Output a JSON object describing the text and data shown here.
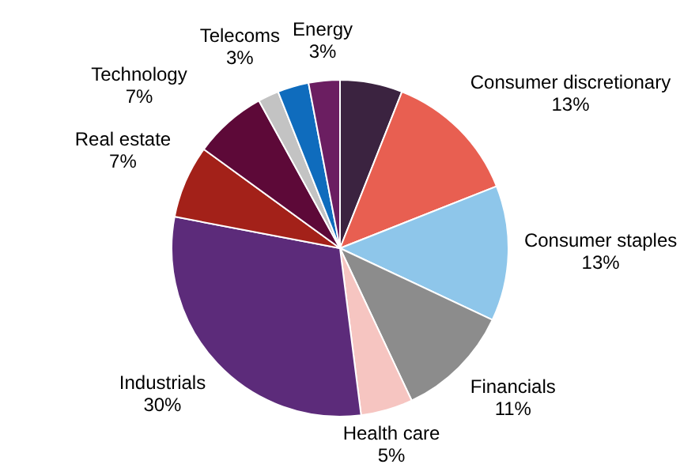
{
  "chart_data": {
    "type": "pie",
    "categories": [
      null,
      "Consumer discretionary",
      "Consumer staples",
      "Financials",
      "Health care",
      "Industrials",
      "Real estate",
      "Technology",
      null,
      "Telecoms",
      "Energy"
    ],
    "values": [
      6,
      13,
      13,
      11,
      5,
      30,
      7,
      7,
      2,
      3,
      3
    ],
    "value_labels": [
      null,
      "13%",
      "13%",
      "11%",
      "5%",
      "30%",
      "7%",
      "7%",
      null,
      "3%",
      "3%"
    ],
    "colors": [
      "#3b2340",
      "#e85f51",
      "#8ec6ea",
      "#8c8c8c",
      "#f6c5c1",
      "#5c2b7a",
      "#a32119",
      "#5d0938",
      "#c3c3c3",
      "#0f6cbd",
      "#6b1e61"
    ],
    "legend": false
  }
}
